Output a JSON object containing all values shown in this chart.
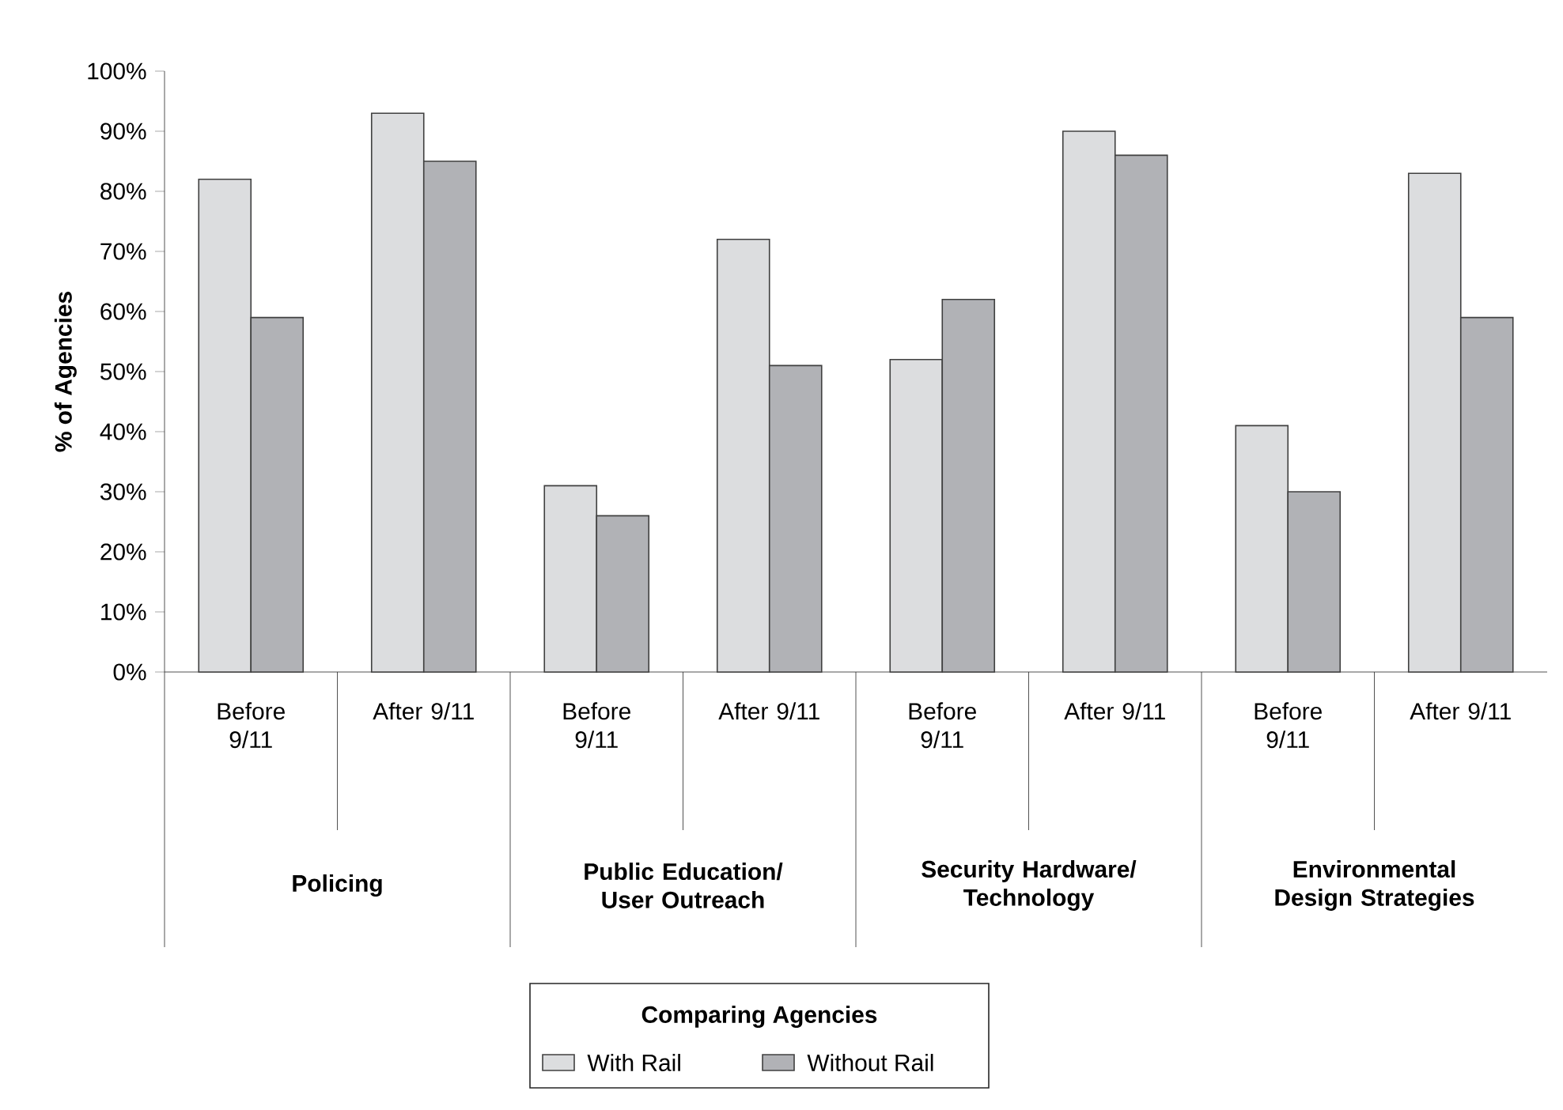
{
  "chart_data": {
    "type": "bar",
    "ylabel": "% of Agencies",
    "categories": [
      "Before 9/11",
      "After 9/11",
      "Before 9/11",
      "After 9/11",
      "Before 9/11",
      "After 9/11",
      "Before 9/11",
      "After 9/11"
    ],
    "series": [
      {
        "name": "With Rail",
        "color": "#dcdddf",
        "values": [
          82,
          93,
          31,
          72,
          52,
          90,
          41,
          83
        ]
      },
      {
        "name": "Without Rail",
        "color": "#b1b2b6",
        "values": [
          59,
          85,
          26,
          51,
          62,
          86,
          30,
          59
        ]
      }
    ],
    "annotations": [
      "Policing",
      "Public Education/ User Outreach",
      "Security Hardware/ Technology",
      "Environmental Design Strategies"
    ],
    "legend_title": "Comparing Agencies",
    "legend": "bottom",
    "ylim": [
      0,
      100
    ],
    "yticks": [
      {
        "value": 0,
        "label": "0%"
      },
      {
        "value": 10,
        "label": "10%"
      },
      {
        "value": 20,
        "label": "20%"
      },
      {
        "value": 30,
        "label": "30%"
      },
      {
        "value": 40,
        "label": "40%"
      },
      {
        "value": 50,
        "label": "50%"
      },
      {
        "value": 60,
        "label": "60%"
      },
      {
        "value": 70,
        "label": "70%"
      },
      {
        "value": 80,
        "label": "80%"
      },
      {
        "value": 90,
        "label": "90%"
      },
      {
        "value": 100,
        "label": "100%"
      }
    ]
  }
}
